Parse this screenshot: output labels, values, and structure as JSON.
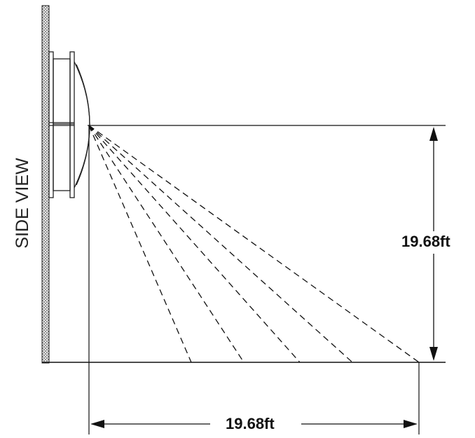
{
  "view_label": "SIDE VIEW",
  "dimensions": {
    "height_label": "19.68ft",
    "width_label": "19.68ft"
  },
  "colors": {
    "line": "#111111",
    "wall_hatch": "#555555"
  },
  "icons": [
    "sensor-icon",
    "wall-icon"
  ]
}
